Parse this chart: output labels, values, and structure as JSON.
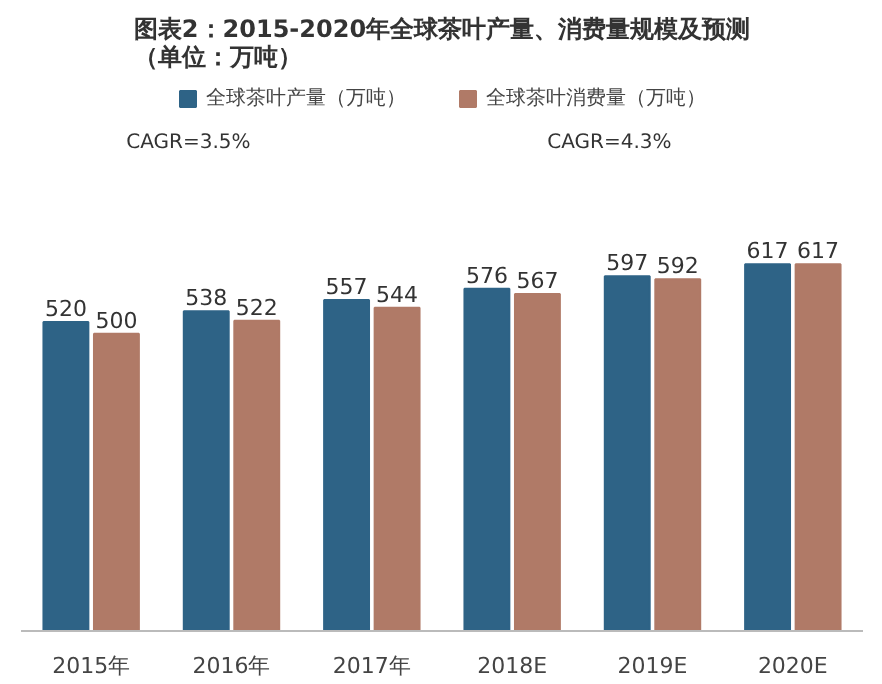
{
  "chart_data": {
    "type": "bar",
    "title": "图表2：2015-2020年全球茶叶产量、消费量规模及预测（单位：万吨）",
    "categories": [
      "2015年",
      "2016年",
      "2017年",
      "2018E",
      "2019E",
      "2020E"
    ],
    "series": [
      {
        "name": "全球茶叶产量（万吨）",
        "color": "#2e6386",
        "values": [
          520,
          538,
          557,
          576,
          597,
          617
        ]
      },
      {
        "name": "全球茶叶消费量（万吨）",
        "color": "#b07a67",
        "values": [
          500,
          522,
          544,
          567,
          592,
          617
        ]
      }
    ],
    "annotations": [
      "CAGR=3.5%",
      "CAGR=4.3%"
    ],
    "data_labels": true,
    "legend": "top",
    "grid": false,
    "tick_labels": "x"
  }
}
